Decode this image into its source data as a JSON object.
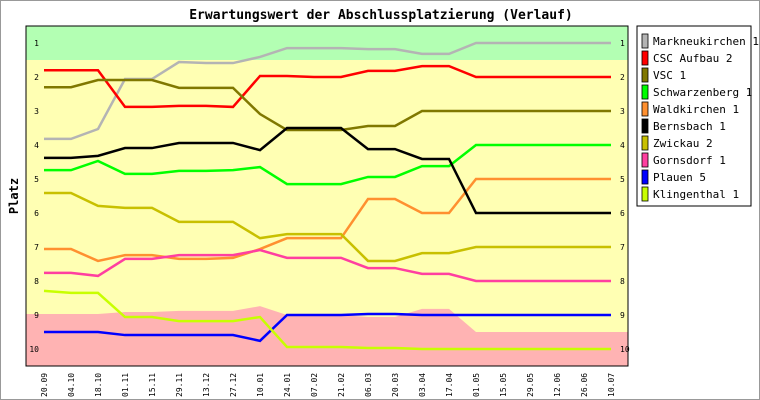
{
  "chart_data": {
    "type": "line",
    "title": "Erwartungswert der Abschlussplatzierung (Verlauf)",
    "xlabel": "",
    "ylabel": "Platz",
    "ylim": [
      1,
      10
    ],
    "y_inverted": true,
    "yticks": [
      "1",
      "2",
      "3",
      "4",
      "5",
      "6",
      "7",
      "8",
      "9",
      "10"
    ],
    "legend_position": "right",
    "categories": [
      "20.09",
      "04.10",
      "18.10",
      "01.11",
      "15.11",
      "29.11",
      "13.12",
      "27.12",
      "10.01",
      "24.01",
      "07.02",
      "21.02",
      "06.03",
      "20.03",
      "03.04",
      "17.04",
      "01.05",
      "15.05",
      "29.05",
      "12.06",
      "26.06",
      "10.07"
    ],
    "zones": {
      "promotion_until": 1.5,
      "relegation_from": [
        8.97,
        8.97,
        8.97,
        8.91,
        8.91,
        8.88,
        8.88,
        8.88,
        8.74,
        9.0,
        9.0,
        9.0,
        9.06,
        9.06,
        8.82,
        8.82,
        9.5,
        9.5,
        9.5,
        9.5,
        9.5,
        9.5
      ],
      "colors": {
        "promotion": "#b3ffb3",
        "middle": "#ffffb3",
        "relegation": "#ffb3b3"
      }
    },
    "series": [
      {
        "name": "Markneukirchen 1",
        "color": "#b4b4b4",
        "values": [
          3.82,
          3.82,
          3.53,
          2.06,
          2.06,
          1.56,
          1.59,
          1.59,
          1.41,
          1.15,
          1.15,
          1.15,
          1.18,
          1.18,
          1.32,
          1.32,
          1,
          1,
          1,
          1,
          1,
          1
        ]
      },
      {
        "name": "CSC Aufbau 2",
        "color": "#ff0000",
        "values": [
          1.8,
          1.8,
          1.8,
          2.88,
          2.88,
          2.85,
          2.85,
          2.88,
          1.97,
          1.97,
          2,
          2,
          1.82,
          1.82,
          1.68,
          1.68,
          2,
          2,
          2,
          2,
          2,
          2
        ]
      },
      {
        "name": "VSC 1",
        "color": "#807800",
        "values": [
          2.3,
          2.3,
          2.09,
          2.09,
          2.09,
          2.32,
          2.32,
          2.32,
          3.09,
          3.56,
          3.56,
          3.56,
          3.44,
          3.44,
          3,
          3,
          3,
          3,
          3,
          3,
          3,
          3
        ]
      },
      {
        "name": "Schwarzenberg 1",
        "color": "#00ff00",
        "values": [
          4.74,
          4.74,
          4.47,
          4.85,
          4.85,
          4.76,
          4.76,
          4.74,
          4.65,
          5.15,
          5.15,
          5.15,
          4.94,
          4.94,
          4.62,
          4.62,
          4,
          4,
          4,
          4,
          4,
          4
        ]
      },
      {
        "name": "Waldkirchen 1",
        "color": "#ff9030",
        "values": [
          7.06,
          7.06,
          7.41,
          7.24,
          7.24,
          7.35,
          7.35,
          7.32,
          7.06,
          6.74,
          6.74,
          6.74,
          5.59,
          5.59,
          6,
          6,
          5,
          5,
          5,
          5,
          5,
          5
        ]
      },
      {
        "name": "Bernsbach 1",
        "color": "#000000",
        "values": [
          4.38,
          4.38,
          4.32,
          4.09,
          4.09,
          3.94,
          3.94,
          3.94,
          4.15,
          3.5,
          3.5,
          3.5,
          4.12,
          4.12,
          4.41,
          4.41,
          6,
          6,
          6,
          6,
          6,
          6
        ]
      },
      {
        "name": "Zwickau 2",
        "color": "#c8c000",
        "values": [
          5.41,
          5.41,
          5.79,
          5.85,
          5.85,
          6.26,
          6.26,
          6.26,
          6.74,
          6.62,
          6.62,
          6.62,
          7.41,
          7.41,
          7.18,
          7.18,
          7,
          7,
          7,
          7,
          7,
          7
        ]
      },
      {
        "name": "Gornsdorf 1",
        "color": "#ff3fa0",
        "values": [
          7.76,
          7.76,
          7.85,
          7.35,
          7.35,
          7.24,
          7.24,
          7.24,
          7.09,
          7.32,
          7.32,
          7.32,
          7.62,
          7.62,
          7.79,
          7.79,
          8,
          8,
          8,
          8,
          8,
          8
        ]
      },
      {
        "name": "Plauen 5",
        "color": "#0000ff",
        "values": [
          9.5,
          9.5,
          9.5,
          9.59,
          9.59,
          9.59,
          9.59,
          9.59,
          9.76,
          9,
          9,
          9,
          8.97,
          8.97,
          9,
          9,
          9,
          9,
          9,
          9,
          9,
          9
        ]
      },
      {
        "name": "Klingenthal 1",
        "color": "#c8ff00",
        "values": [
          8.29,
          8.35,
          8.35,
          9.06,
          9.06,
          9.18,
          9.18,
          9.18,
          9.06,
          9.94,
          9.94,
          9.94,
          9.97,
          9.97,
          10,
          10,
          10,
          10,
          10,
          10,
          10,
          10
        ]
      }
    ]
  }
}
